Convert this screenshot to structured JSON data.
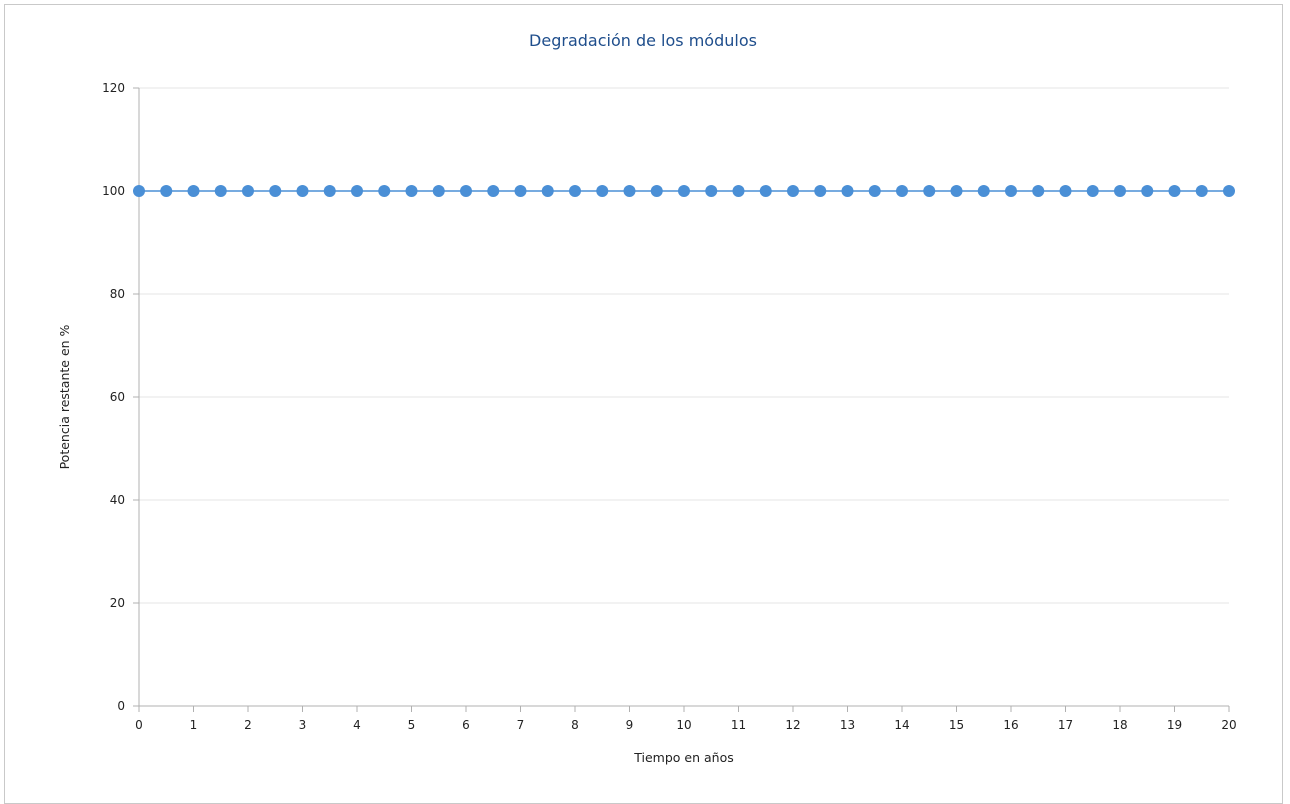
{
  "chart_data": {
    "type": "line",
    "title": "Degradación de los módulos",
    "xlabel": "Tiempo en años",
    "ylabel": "Potencia restante en %",
    "xlim": [
      0,
      20
    ],
    "ylim": [
      0,
      120
    ],
    "x_ticks": [
      0,
      1,
      2,
      3,
      4,
      5,
      6,
      7,
      8,
      9,
      10,
      11,
      12,
      13,
      14,
      15,
      16,
      17,
      18,
      19,
      20
    ],
    "y_ticks": [
      0,
      20,
      40,
      60,
      80,
      100,
      120
    ],
    "grid": "horizontal",
    "legend": "none",
    "series": [
      {
        "color": "#4a8fd6",
        "x": [
          0,
          0.5,
          1,
          1.5,
          2,
          2.5,
          3,
          3.5,
          4,
          4.5,
          5,
          5.5,
          6,
          6.5,
          7,
          7.5,
          8,
          8.5,
          9,
          9.5,
          10,
          10.5,
          11,
          11.5,
          12,
          12.5,
          13,
          13.5,
          14,
          14.5,
          15,
          15.5,
          16,
          16.5,
          17,
          17.5,
          18,
          18.5,
          19,
          19.5,
          20
        ],
        "y": [
          100,
          100,
          100,
          100,
          100,
          100,
          100,
          100,
          100,
          100,
          100,
          100,
          100,
          100,
          100,
          100,
          100,
          100,
          100,
          100,
          100,
          100,
          100,
          100,
          100,
          100,
          100,
          100,
          100,
          100,
          100,
          100,
          100,
          100,
          100,
          100,
          100,
          100,
          100,
          100,
          100
        ]
      }
    ]
  },
  "colors": {
    "title": "#1f4e8c",
    "grid": "#e6e6e6",
    "axis": "#b0b0b0",
    "series": "#4a8fd6"
  }
}
